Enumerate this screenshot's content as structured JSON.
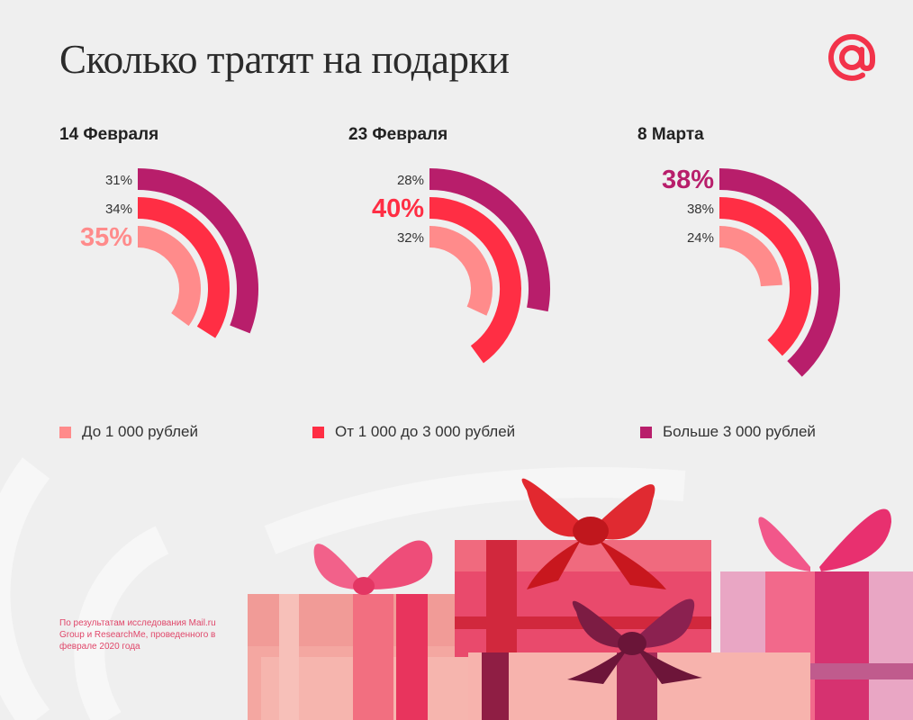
{
  "header": {
    "title": "Сколько тратят на подарки",
    "logo_icon": "at-sign-icon",
    "logo_color": "#f2334a"
  },
  "colors": {
    "under_1000": "#ff8b8b",
    "from_1000_to_3000": "#ff2e44",
    "over_3000": "#b81e6b",
    "background": "#efefef"
  },
  "chart_data": [
    {
      "type": "radial-bar",
      "title": "14 Февраля",
      "categories": [
        "До 1 000 рублей",
        "От 1 000 до 3 000 рублей",
        "Больше 3 000 рублей"
      ],
      "values": [
        35,
        34,
        31
      ],
      "labels": [
        "35%",
        "34%",
        "31%"
      ],
      "highlight": 0,
      "unit": "%"
    },
    {
      "type": "radial-bar",
      "title": "23 Февраля",
      "categories": [
        "До 1 000 рублей",
        "От 1 000 до 3 000 рублей",
        "Больше 3 000 рублей"
      ],
      "values": [
        32,
        40,
        28
      ],
      "labels": [
        "32%",
        "40%",
        "28%"
      ],
      "highlight": 1,
      "unit": "%"
    },
    {
      "type": "radial-bar",
      "title": "8 Марта",
      "categories": [
        "До 1 000 рублей",
        "От 1 000 до 3 000 рублей",
        "Больше 3 000 рублей"
      ],
      "values": [
        24,
        38,
        38
      ],
      "labels": [
        "24%",
        "38%",
        "38%"
      ],
      "highlight": 2,
      "unit": "%"
    }
  ],
  "legend": {
    "items": [
      {
        "label": "До 1 000 рублей",
        "color": "#ff8b8b"
      },
      {
        "label": "От 1 000 до 3 000 рублей",
        "color": "#ff2e44"
      },
      {
        "label": "Больше 3 000 рублей",
        "color": "#b81e6b"
      }
    ]
  },
  "footer": {
    "source": "По результатам исследования Mail.ru Group и ResearchMe, проведенного в феврале 2020 года"
  },
  "decoration": {
    "image": "gift-boxes-illustration",
    "watermark": "at-sign-watermark"
  }
}
